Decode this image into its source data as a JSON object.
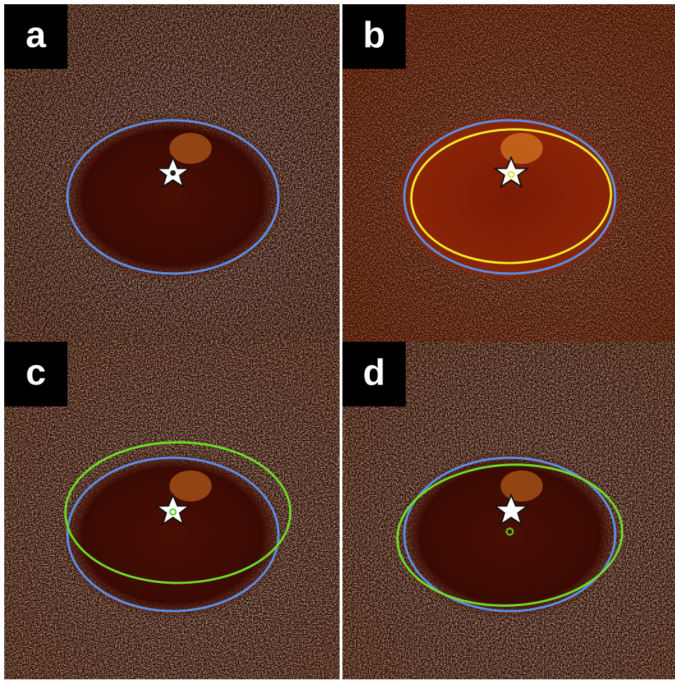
{
  "panels": [
    {
      "label": "a",
      "ellipses": [
        {
          "color": "#5b8fe8"
        }
      ],
      "star": {
        "fill": "#ffffff",
        "stroke": "#111111",
        "inner_dot": "#222222"
      },
      "marker": null
    },
    {
      "label": "b",
      "ellipses": [
        {
          "color": "#5b8fe8"
        },
        {
          "color": "#f2ec2a"
        }
      ],
      "star": {
        "fill": "#ffffff",
        "stroke": "#111111",
        "inner_dot": null
      },
      "marker": {
        "color": "#e8e020"
      }
    },
    {
      "label": "c",
      "ellipses": [
        {
          "color": "#5b8fe8"
        },
        {
          "color": "#6edc28"
        }
      ],
      "star": {
        "fill": "#ffffff",
        "stroke": "#111111",
        "inner_dot": null
      },
      "marker": {
        "color": "#55c81e"
      }
    },
    {
      "label": "d",
      "ellipses": [
        {
          "color": "#5b8fe8"
        },
        {
          "color": "#6edc28"
        }
      ],
      "star": {
        "fill": "#ffffff",
        "stroke": "#111111",
        "inner_dot": null
      },
      "marker": {
        "color": "#55c81e"
      }
    }
  ],
  "colors": {
    "background": "#ffffff",
    "label_bg": "#000000",
    "label_text": "#ffffff"
  }
}
